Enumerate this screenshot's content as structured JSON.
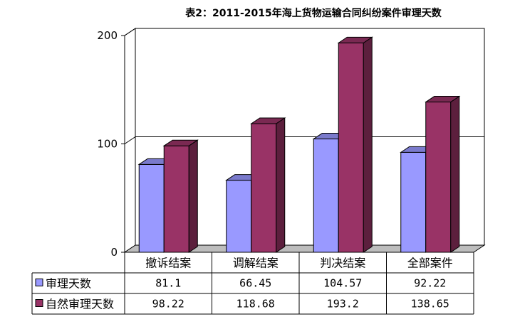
{
  "chart_data": {
    "type": "bar",
    "title": "表2：2011-2015年海上货物运输合同纠纷案件审理天数",
    "categories": [
      "撤诉结案",
      "调解结案",
      "判决结案",
      "全部案件"
    ],
    "series": [
      {
        "name": "审理天数",
        "values": [
          81.1,
          66.45,
          104.57,
          92.22
        ],
        "labels": [
          "81.1",
          "66.45",
          "104.57",
          "92.22"
        ],
        "color": "#9999ff"
      },
      {
        "name": "自然审理天数",
        "values": [
          98.22,
          118.68,
          193.2,
          138.65
        ],
        "labels": [
          "98.22",
          "118.68",
          "193.2",
          "138.65"
        ],
        "color": "#993366"
      }
    ],
    "yticks": [
      0,
      100,
      200
    ],
    "ylim": [
      0,
      200
    ],
    "xlabel": "",
    "ylabel": "",
    "grid": true,
    "legend": "data-table",
    "style": "3d"
  }
}
